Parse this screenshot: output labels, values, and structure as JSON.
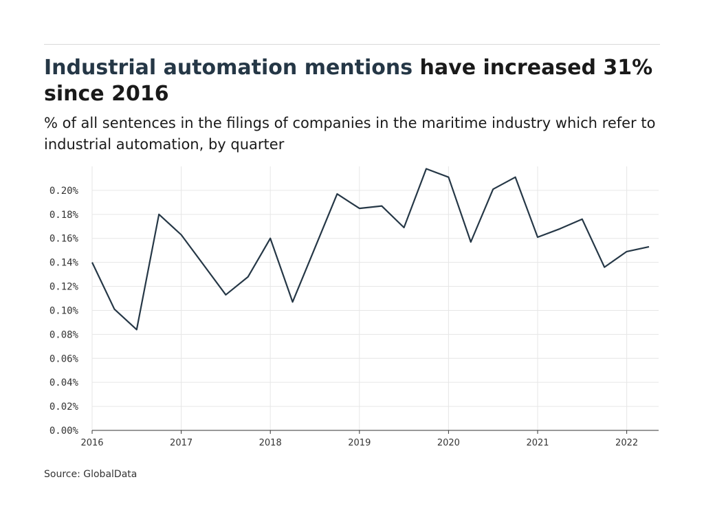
{
  "title": {
    "highlight": "Industrial automation mentions",
    "rest": " have increased 31% since 2016"
  },
  "subtitle": "% of all sentences in the filings of companies in the maritime industry which refer to industrial automation, by quarter",
  "source": "Source: GlobalData",
  "colors": {
    "line": "#253746",
    "grid": "#e6e6e6",
    "axis": "#333333"
  },
  "chart_data": {
    "type": "line",
    "title": "Industrial automation mentions have increased 31% since 2016",
    "xlabel": "",
    "ylabel": "",
    "x": [
      "2016 Q1",
      "2016 Q2",
      "2016 Q3",
      "2016 Q4",
      "2017 Q1",
      "2017 Q2",
      "2017 Q3",
      "2017 Q4",
      "2018 Q1",
      "2018 Q2",
      "2018 Q3",
      "2018 Q4",
      "2019 Q1",
      "2019 Q2",
      "2019 Q3",
      "2019 Q4",
      "2020 Q1",
      "2020 Q2",
      "2020 Q3",
      "2020 Q4",
      "2021 Q1",
      "2021 Q2",
      "2021 Q3",
      "2021 Q4",
      "2022 Q1",
      "2022 Q2"
    ],
    "values": [
      0.14,
      0.101,
      0.084,
      0.18,
      0.163,
      0.138,
      0.113,
      0.128,
      0.16,
      0.107,
      0.152,
      0.197,
      0.185,
      0.187,
      0.169,
      0.218,
      0.211,
      0.157,
      0.201,
      0.211,
      0.161,
      0.168,
      0.176,
      0.136,
      0.149,
      0.153
    ],
    "y_unit": "%",
    "ylim": [
      0,
      0.22
    ],
    "yticks": [
      "0.00%",
      "0.02%",
      "0.04%",
      "0.06%",
      "0.08%",
      "0.10%",
      "0.12%",
      "0.14%",
      "0.16%",
      "0.18%",
      "0.20%"
    ],
    "xticks": [
      "2016",
      "2017",
      "2018",
      "2019",
      "2020",
      "2021",
      "2022"
    ],
    "grid": true,
    "legend": "none"
  }
}
